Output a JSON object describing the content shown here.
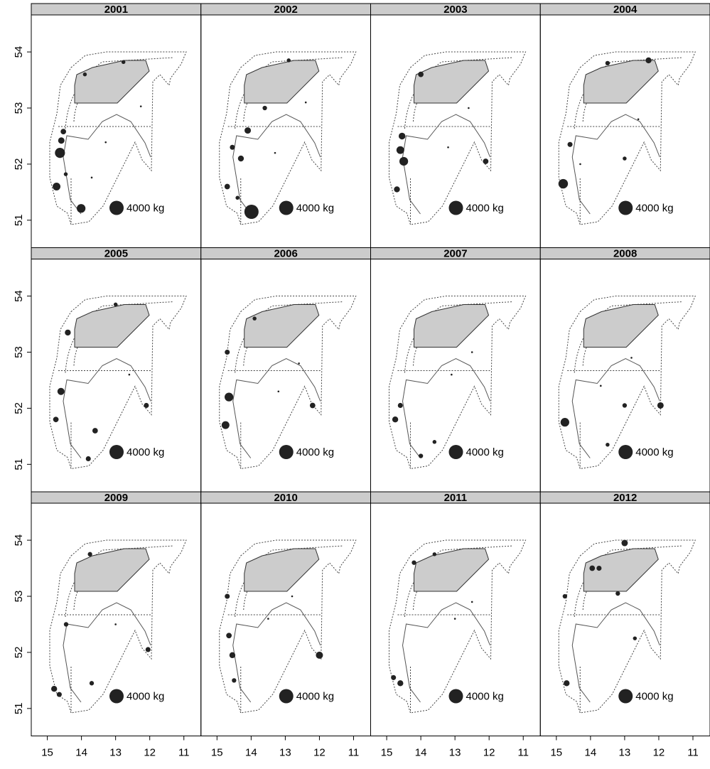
{
  "chart_data": {
    "type": "bubble-map-facets",
    "xlim": [
      15.47,
      10.5
    ],
    "ylim": [
      50.51,
      54.66
    ],
    "xticks": [
      15,
      14,
      13,
      12,
      11
    ],
    "yticks": [
      51,
      52,
      53,
      54
    ],
    "color": "#222222",
    "strip_color": "#cccccc",
    "legend": {
      "label": "4000 kg",
      "value": 4000
    },
    "panels": [
      {
        "title": "2001",
        "x": [
          14.63,
          14.73,
          14.01,
          14.59,
          14.53,
          12.77,
          13.9,
          14.46,
          13.29,
          12.26,
          13.7
        ],
        "y": [
          52.2,
          51.6,
          51.21,
          52.42,
          52.58,
          53.82,
          53.6,
          51.82,
          52.39,
          53.03,
          51.76
        ],
        "sizes": [
          2000,
          1200,
          1500,
          800,
          600,
          300,
          300,
          300,
          50,
          50,
          50
        ]
      },
      {
        "title": "2002",
        "x": [
          13.99,
          14.7,
          14.3,
          14.1,
          14.55,
          13.6,
          12.9,
          14.4,
          13.3,
          12.4
        ],
        "y": [
          51.15,
          51.6,
          52.1,
          52.6,
          52.3,
          53.0,
          53.85,
          51.4,
          52.2,
          53.1
        ],
        "sizes": [
          4000,
          600,
          700,
          800,
          500,
          400,
          300,
          300,
          50,
          50
        ]
      },
      {
        "title": "2003",
        "x": [
          14.5,
          14.6,
          14.55,
          14.7,
          14.0,
          12.1,
          13.2,
          12.6
        ],
        "y": [
          52.05,
          52.25,
          52.5,
          51.55,
          53.6,
          52.05,
          52.3,
          53.0
        ],
        "sizes": [
          1500,
          1200,
          900,
          700,
          600,
          600,
          50,
          50
        ]
      },
      {
        "title": "2004",
        "x": [
          14.8,
          12.3,
          13.5,
          14.6,
          13.0,
          12.6,
          14.3
        ],
        "y": [
          51.65,
          53.85,
          53.8,
          52.35,
          52.1,
          52.8,
          52.0
        ],
        "sizes": [
          1800,
          700,
          400,
          500,
          300,
          50,
          50
        ]
      },
      {
        "title": "2005",
        "x": [
          14.6,
          14.75,
          13.6,
          13.8,
          14.4,
          12.1,
          13.0,
          12.6
        ],
        "y": [
          52.3,
          51.8,
          51.6,
          51.1,
          53.35,
          52.05,
          53.85,
          52.6
        ],
        "sizes": [
          1000,
          600,
          600,
          500,
          700,
          500,
          300,
          50
        ]
      },
      {
        "title": "2006",
        "x": [
          14.65,
          14.75,
          14.7,
          12.2,
          13.9,
          13.2,
          12.6
        ],
        "y": [
          52.2,
          51.7,
          53.0,
          52.05,
          53.6,
          52.3,
          52.8
        ],
        "sizes": [
          1500,
          1200,
          500,
          600,
          300,
          50,
          50
        ]
      },
      {
        "title": "2007",
        "x": [
          14.75,
          14.6,
          14.0,
          13.6,
          13.1,
          12.5
        ],
        "y": [
          51.8,
          52.05,
          51.15,
          51.4,
          52.6,
          53.0
        ],
        "sizes": [
          700,
          500,
          400,
          300,
          50,
          50
        ]
      },
      {
        "title": "2008",
        "x": [
          14.75,
          11.95,
          13.0,
          13.5,
          12.8,
          13.7
        ],
        "y": [
          51.75,
          52.05,
          52.05,
          51.35,
          52.9,
          52.4
        ],
        "sizes": [
          1500,
          800,
          400,
          300,
          50,
          50
        ]
      },
      {
        "title": "2009",
        "x": [
          14.8,
          14.65,
          14.45,
          13.7,
          13.75,
          12.05,
          13.0
        ],
        "y": [
          51.35,
          51.25,
          52.5,
          51.45,
          53.75,
          52.05,
          52.5
        ],
        "sizes": [
          700,
          500,
          400,
          400,
          400,
          500,
          50
        ]
      },
      {
        "title": "2010",
        "x": [
          14.7,
          14.65,
          14.55,
          14.5,
          12.0,
          13.5,
          12.8
        ],
        "y": [
          53.0,
          52.3,
          51.95,
          51.5,
          51.95,
          52.6,
          53.0
        ],
        "sizes": [
          500,
          600,
          700,
          400,
          1000,
          50,
          50
        ]
      },
      {
        "title": "2011",
        "x": [
          14.6,
          14.8,
          14.2,
          13.6,
          13.0,
          12.5
        ],
        "y": [
          51.45,
          51.55,
          53.6,
          53.75,
          52.6,
          52.9
        ],
        "sizes": [
          700,
          500,
          400,
          300,
          50,
          50
        ]
      },
      {
        "title": "2012",
        "x": [
          14.7,
          13.0,
          13.95,
          13.75,
          14.75,
          13.2,
          12.7
        ],
        "y": [
          51.45,
          53.95,
          53.5,
          53.5,
          53.0,
          53.05,
          52.25
        ],
        "sizes": [
          700,
          800,
          600,
          500,
          400,
          400,
          300
        ]
      }
    ]
  }
}
